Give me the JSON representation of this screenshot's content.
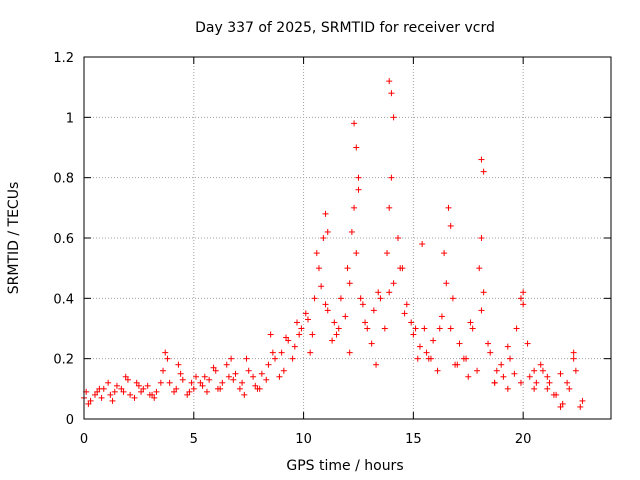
{
  "chart_data": {
    "type": "scatter",
    "title": "Day 337 of 2025, SRMTID for receiver vcrd",
    "xlabel": "GPS time / hours",
    "ylabel": "SRMTID / TECUs",
    "xlim": [
      0,
      24
    ],
    "ylim": [
      0,
      1.2
    ],
    "xticks": [
      0,
      5,
      10,
      15,
      20
    ],
    "xtick_labels": [
      "0",
      "5",
      "10",
      "15",
      "20"
    ],
    "yticks": [
      0,
      0.2,
      0.4,
      0.6,
      0.8,
      1,
      1.2
    ],
    "ytick_labels": [
      "0",
      "0.2",
      "0.4",
      "0.6",
      "0.8",
      "1",
      "1.2"
    ],
    "grid": true,
    "marker": "+",
    "series": [
      {
        "name": "SRMTID",
        "color": "#ff0000",
        "x": [
          0.0,
          0.3,
          0.6,
          0.9,
          1.2,
          1.5,
          1.8,
          2.1,
          2.4,
          2.7,
          3.0,
          3.3,
          3.6,
          3.9,
          4.2,
          4.5,
          4.8,
          5.1,
          5.4,
          5.7,
          6.0,
          6.3,
          6.6,
          6.9,
          7.2,
          7.5,
          7.8,
          8.1,
          8.4,
          8.7,
          9.0,
          9.3,
          9.6,
          9.9,
          10.2,
          10.5,
          10.8,
          11.1,
          11.4,
          11.7,
          12.0,
          12.2,
          12.4,
          12.6,
          12.9,
          13.2,
          13.5,
          13.8,
          13.9,
          14.1,
          14.4,
          14.7,
          15.0,
          15.3,
          15.6,
          15.9,
          16.2,
          16.5,
          16.8,
          17.1,
          17.4,
          17.7,
          18.0,
          18.2,
          18.5,
          18.8,
          19.1,
          19.4,
          19.7,
          20.0,
          20.3,
          20.6,
          20.9,
          21.2,
          21.5,
          21.8,
          22.1,
          22.4,
          22.7,
          0.2,
          0.5,
          0.8,
          1.1,
          1.4,
          1.7,
          2.0,
          2.3,
          2.6,
          2.9,
          3.2,
          3.5,
          3.8,
          4.1,
          4.4,
          4.7,
          5.0,
          5.3,
          5.6,
          5.9,
          6.2,
          6.5,
          6.8,
          7.1,
          7.4,
          7.7,
          8.0,
          8.3,
          8.6,
          8.9,
          9.2,
          9.5,
          9.8,
          10.1,
          10.4,
          10.7,
          11.0,
          11.3,
          11.6,
          11.9,
          12.1,
          12.3,
          12.5,
          12.8,
          13.1,
          13.4,
          13.7,
          14.0,
          14.3,
          14.6,
          14.9,
          15.2,
          15.5,
          15.8,
          16.1,
          16.4,
          16.7,
          17.0,
          17.3,
          17.6,
          17.9,
          18.1,
          18.4,
          18.7,
          19.0,
          19.3,
          19.6,
          19.9,
          20.2,
          20.5,
          20.8,
          21.1,
          21.4,
          21.7,
          22.0,
          22.3,
          22.6,
          0.1,
          0.7,
          1.3,
          1.9,
          2.5,
          3.1,
          3.7,
          4.3,
          4.9,
          5.5,
          6.1,
          6.7,
          7.3,
          7.9,
          8.5,
          9.1,
          9.7,
          10.3,
          10.9,
          11.5,
          12.1,
          12.7,
          13.3,
          13.9,
          14.5,
          15.1,
          15.7,
          16.3,
          16.9,
          17.5,
          18.1,
          18.7,
          19.3,
          19.9,
          20.5,
          21.1,
          21.7,
          22.3,
          12.3,
          12.4,
          12.5,
          13.9,
          14.0,
          14.1,
          16.6,
          16.7,
          18.1,
          18.2,
          11.0,
          11.1,
          10.6,
          15.4,
          20.0
        ],
        "y": [
          0.07,
          0.06,
          0.09,
          0.1,
          0.08,
          0.11,
          0.09,
          0.08,
          0.12,
          0.1,
          0.08,
          0.09,
          0.16,
          0.12,
          0.1,
          0.13,
          0.09,
          0.14,
          0.11,
          0.13,
          0.16,
          0.12,
          0.14,
          0.15,
          0.12,
          0.16,
          0.11,
          0.15,
          0.18,
          0.2,
          0.22,
          0.26,
          0.24,
          0.3,
          0.33,
          0.4,
          0.44,
          0.36,
          0.32,
          0.4,
          0.5,
          0.62,
          0.55,
          0.4,
          0.3,
          0.36,
          0.4,
          0.55,
          0.7,
          0.45,
          0.5,
          0.38,
          0.28,
          0.24,
          0.22,
          0.26,
          0.3,
          0.45,
          0.4,
          0.25,
          0.2,
          0.3,
          0.5,
          0.42,
          0.22,
          0.16,
          0.14,
          0.2,
          0.3,
          0.38,
          0.14,
          0.12,
          0.16,
          0.12,
          0.08,
          0.05,
          0.1,
          0.16,
          0.06,
          0.05,
          0.08,
          0.07,
          0.12,
          0.09,
          0.1,
          0.13,
          0.07,
          0.09,
          0.11,
          0.07,
          0.12,
          0.2,
          0.09,
          0.15,
          0.08,
          0.1,
          0.12,
          0.09,
          0.17,
          0.1,
          0.18,
          0.13,
          0.1,
          0.2,
          0.14,
          0.1,
          0.13,
          0.22,
          0.14,
          0.27,
          0.2,
          0.28,
          0.35,
          0.28,
          0.5,
          0.38,
          0.26,
          0.3,
          0.34,
          0.45,
          0.7,
          0.76,
          0.32,
          0.25,
          0.42,
          0.3,
          0.8,
          0.6,
          0.35,
          0.32,
          0.2,
          0.3,
          0.2,
          0.16,
          0.55,
          0.3,
          0.18,
          0.2,
          0.32,
          0.16,
          0.6,
          0.25,
          0.12,
          0.18,
          0.24,
          0.15,
          0.12,
          0.25,
          0.1,
          0.18,
          0.14,
          0.08,
          0.15,
          0.12,
          0.22,
          0.04,
          0.09,
          0.1,
          0.06,
          0.14,
          0.11,
          0.08,
          0.22,
          0.18,
          0.12,
          0.14,
          0.1,
          0.2,
          0.08,
          0.1,
          0.28,
          0.16,
          0.32,
          0.22,
          0.6,
          0.28,
          0.22,
          0.38,
          0.18,
          0.42,
          0.5,
          0.3,
          0.2,
          0.34,
          0.18,
          0.14,
          0.36,
          0.12,
          0.1,
          0.4,
          0.16,
          0.1,
          0.04,
          0.2,
          0.98,
          0.9,
          0.8,
          1.12,
          1.08,
          1.0,
          0.7,
          0.64,
          0.86,
          0.82,
          0.68,
          0.62,
          0.55,
          0.58,
          0.42
        ]
      }
    ]
  }
}
